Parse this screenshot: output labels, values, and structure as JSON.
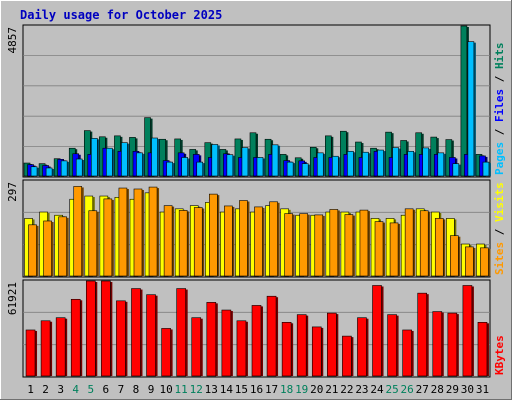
{
  "chart_data": {
    "type": "bar",
    "title": "Daily usage for October 2025",
    "categories": [
      "1",
      "2",
      "3",
      "4",
      "5",
      "6",
      "7",
      "8",
      "9",
      "10",
      "11",
      "12",
      "13",
      "14",
      "15",
      "16",
      "17",
      "18",
      "19",
      "20",
      "21",
      "22",
      "23",
      "24",
      "25",
      "26",
      "27",
      "28",
      "29",
      "30",
      "31"
    ],
    "weekend_days": [
      "4",
      "5",
      "11",
      "12",
      "18",
      "19",
      "25",
      "26"
    ],
    "panels": [
      {
        "id": "hits",
        "ymax_label": "4857",
        "ymax": 4857,
        "axis_label_parts": [
          "Pages",
          " / ",
          "Files",
          " / ",
          "Hits"
        ],
        "series": [
          {
            "name": "Hits",
            "color": "#00805c",
            "values": [
              420,
              400,
              560,
              900,
              1470,
              1270,
              1300,
              1250,
              1890,
              1190,
              1200,
              860,
              1080,
              860,
              1200,
              1400,
              1190,
              700,
              590,
              930,
              1300,
              1450,
              1100,
              900,
              1420,
              1150,
              1400,
              1260,
              1180,
              4857,
              700
            ]
          },
          {
            "name": "Files",
            "color": "#0000ff",
            "values": [
              370,
              340,
              540,
              720,
              700,
              900,
              800,
              800,
              750,
              500,
              750,
              700,
              600,
              720,
              600,
              600,
              700,
              500,
              490,
              600,
              600,
              700,
              600,
              800,
              600,
              700,
              700,
              700,
              600,
              700,
              650
            ]
          },
          {
            "name": "Pages",
            "color": "#00bfff",
            "values": [
              300,
              260,
              490,
              550,
              1220,
              900,
              1080,
              750,
              1230,
              450,
              600,
              450,
              1020,
              690,
              920,
              600,
              1010,
              450,
              400,
              750,
              640,
              800,
              770,
              840,
              920,
              800,
              910,
              750,
              400,
              4350,
              450
            ]
          }
        ]
      },
      {
        "id": "visits",
        "ymax_label": "297",
        "ymax": 297,
        "axis_label_parts": [
          "Sites",
          " / ",
          "Visits"
        ],
        "series": [
          {
            "name": "Visits",
            "color": "#ffff00",
            "values": [
              180,
              200,
              190,
              240,
              250,
              250,
              246,
              240,
              260,
              200,
              210,
              220,
              230,
              200,
              210,
              200,
              220,
              210,
              190,
              190,
              200,
              200,
              200,
              180,
              180,
              190,
              210,
              200,
              180,
              100,
              100
            ]
          },
          {
            "name": "Sites",
            "color": "#ff9900",
            "values": [
              160,
              172,
              185,
              280,
              204,
              241,
              275,
              272,
              278,
              220,
              205,
              214,
              256,
              219,
              236,
              216,
              232,
              195,
              195,
              191,
              208,
              192,
              206,
              170,
              166,
              210,
              204,
              180,
              126,
              91,
              88
            ]
          }
        ]
      },
      {
        "id": "kbytes",
        "ymax_label": "61921",
        "ymax": 61921,
        "axis_label_parts": [
          "KBytes"
        ],
        "series": [
          {
            "name": "KBytes",
            "color": "#ff0000",
            "values": [
              30000,
              36000,
              38000,
              50000,
              61921,
              61921,
              49000,
              57000,
              53000,
              31000,
              57000,
              38000,
              48000,
              43000,
              36000,
              46000,
              52000,
              35000,
              40000,
              32000,
              41000,
              26000,
              38000,
              59000,
              40000,
              30000,
              54000,
              42000,
              41000,
              59000,
              35000
            ]
          }
        ]
      }
    ]
  }
}
